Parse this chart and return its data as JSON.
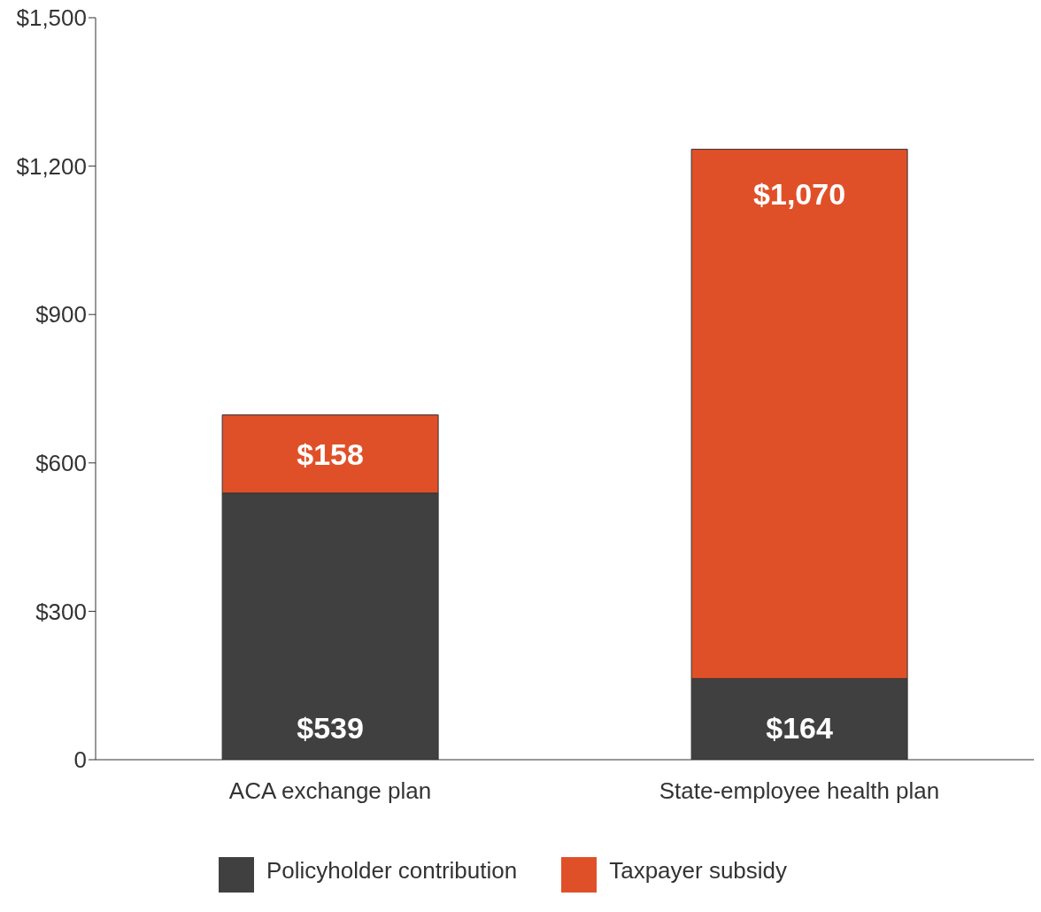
{
  "chart_data": {
    "type": "bar",
    "stacked": true,
    "categories": [
      "ACA exchange plan",
      "State-employee health plan"
    ],
    "series": [
      {
        "name": "Policyholder contribution",
        "color": "#404040",
        "values": [
          539,
          164
        ],
        "value_labels": [
          "$539",
          "$164"
        ]
      },
      {
        "name": "Taxpayer subsidy",
        "color": "#e05028",
        "values": [
          158,
          1070
        ],
        "value_labels": [
          "$158",
          "$1,070"
        ]
      }
    ],
    "ylim": [
      0,
      1500
    ],
    "yticks": [
      {
        "value": 0,
        "label": "0"
      },
      {
        "value": 300,
        "label": "$300"
      },
      {
        "value": 600,
        "label": "$600"
      },
      {
        "value": 900,
        "label": "$900"
      },
      {
        "value": 1200,
        "label": "$1,200"
      },
      {
        "value": 1500,
        "label": "$1,500"
      }
    ],
    "grid": false,
    "legend": "bottom"
  }
}
